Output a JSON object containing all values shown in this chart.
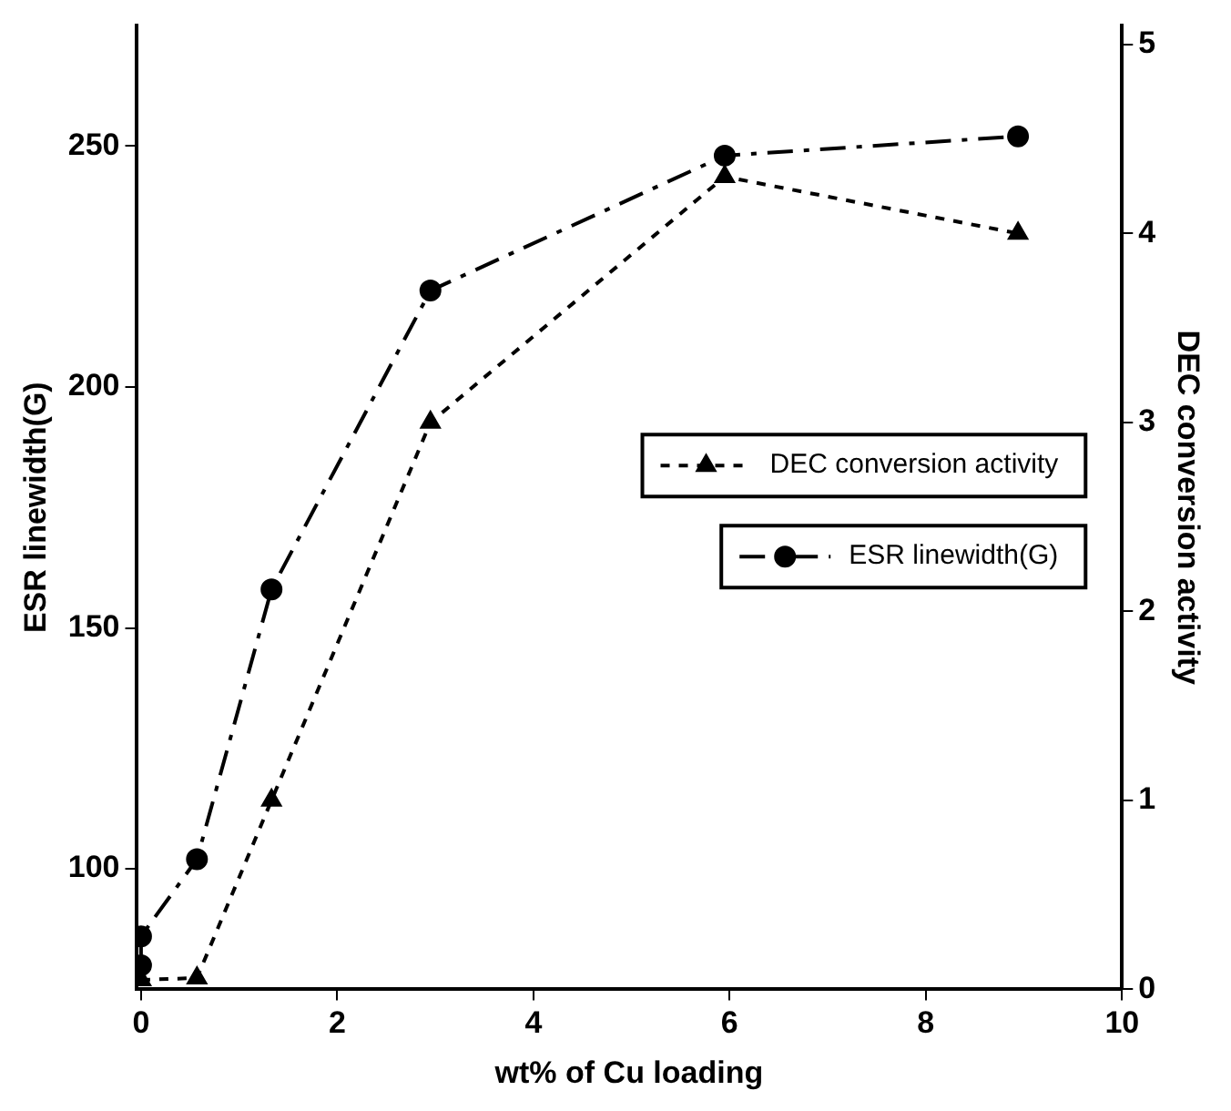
{
  "chart_data": {
    "type": "line",
    "xlabel": "wt% of Cu loading",
    "ylabel": "ESR linewidth(G)",
    "y2label": "DEC conversion activity",
    "xlim": [
      -0.05,
      10
    ],
    "xticks": [
      0,
      2,
      4,
      6,
      8,
      10
    ],
    "ylim": [
      75,
      275
    ],
    "yticks": [
      100,
      150,
      200,
      250
    ],
    "y2lim": [
      0,
      5.1
    ],
    "y2ticks": [
      0,
      1,
      2,
      3,
      4,
      5
    ],
    "grid": false,
    "legend": "right",
    "series": [
      {
        "name": "DEC conversion activity",
        "color": "#000000",
        "axis": "y2",
        "marker": "triangle",
        "line_style": "dotted",
        "x": [
          0,
          0.57,
          1.33,
          2.95,
          5.95,
          8.94
        ],
        "values": [
          0.05,
          0.06,
          1.0,
          3.0,
          4.3,
          4.0
        ]
      },
      {
        "name": "ESR linewidth(G)",
        "color": "#000000",
        "axis": "y",
        "marker": "circle",
        "line_style": "dashed",
        "x": [
          0,
          0,
          0.57,
          1.33,
          2.95,
          5.95,
          8.94
        ],
        "values": [
          80,
          86,
          102,
          158,
          220,
          248,
          252
        ]
      }
    ]
  }
}
